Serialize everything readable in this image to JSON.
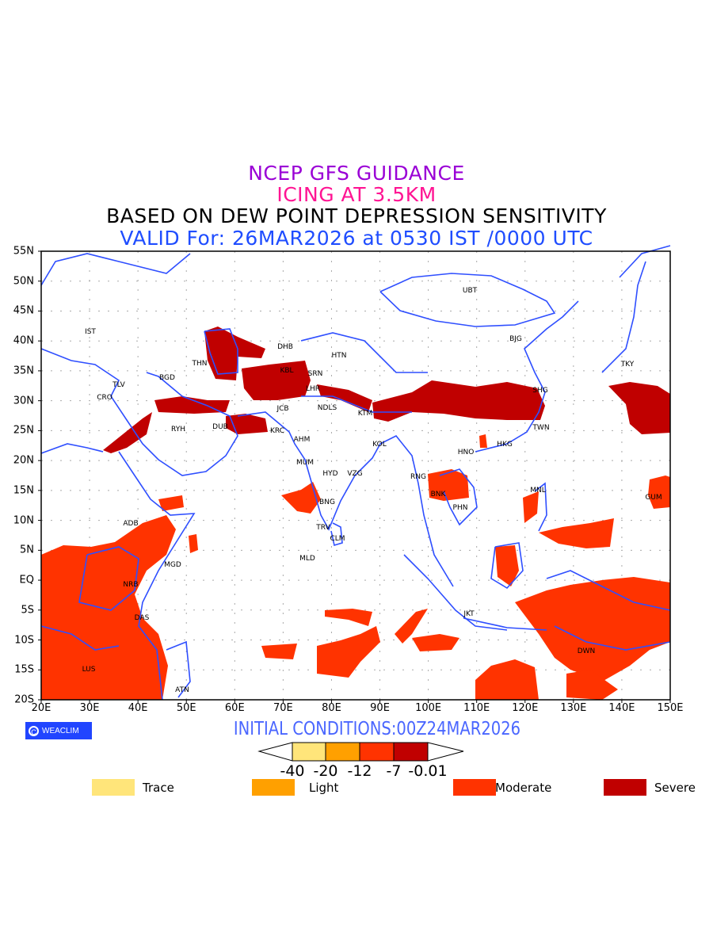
{
  "titles": {
    "line1": "NCEP GFS GUIDANCE",
    "line2": "ICING AT 3.5KM",
    "line3": "BASED ON DEW POINT DEPRESSION SENSITIVITY",
    "line4": "VALID For: 26MAR2026 at 0530 IST /0000 UTC"
  },
  "colors": {
    "title1": "#9a00d6",
    "title2": "#ff1493",
    "valid": "#1f4dff",
    "coast": "#2f4fff",
    "trace": "#ffe57a",
    "light": "#ffa000",
    "moderate": "#ff3300",
    "severe": "#c00000"
  },
  "axes": {
    "lat_labels": [
      "55N",
      "50N",
      "45N",
      "40N",
      "35N",
      "30N",
      "25N",
      "20N",
      "15N",
      "10N",
      "5N",
      "EQ",
      "5S",
      "10S",
      "15S",
      "20S"
    ],
    "lon_labels": [
      "20E",
      "30E",
      "40E",
      "50E",
      "60E",
      "70E",
      "80E",
      "90E",
      "100E",
      "110E",
      "120E",
      "130E",
      "140E",
      "150E"
    ]
  },
  "cities": [
    "UBT",
    "BJG",
    "TKY",
    "SHG",
    "TWN",
    "HKG",
    "HNO",
    "RNG",
    "BNK",
    "PHN",
    "MNL",
    "GUM",
    "IST",
    "THN",
    "BGD",
    "TLV",
    "CRO",
    "RYH",
    "DUB",
    "DHB",
    "HTN",
    "KBL",
    "SRN",
    "LHR",
    "JCB",
    "NDLS",
    "KTM",
    "KRC",
    "AHM",
    "KOL",
    "MUM",
    "HYD",
    "VZG",
    "BNG",
    "TRV",
    "CLM",
    "MLD",
    "ADB",
    "MGD",
    "NRB",
    "DAS",
    "LUS",
    "ATN",
    "JKT",
    "DWN"
  ],
  "footer": {
    "badge": "WEACLIM",
    "initial_conditions": "INITIAL CONDITIONS:00Z24MAR2026"
  },
  "colorbar": {
    "labels": [
      "-40",
      "-20",
      "-12",
      "-7",
      "-0.01"
    ]
  },
  "legend": [
    {
      "label": "Trace",
      "color": "#ffe57a"
    },
    {
      "label": "Light",
      "color": "#ffa000"
    },
    {
      "label": "Moderate",
      "color": "#ff3300"
    },
    {
      "label": "Severe",
      "color": "#c00000"
    }
  ]
}
